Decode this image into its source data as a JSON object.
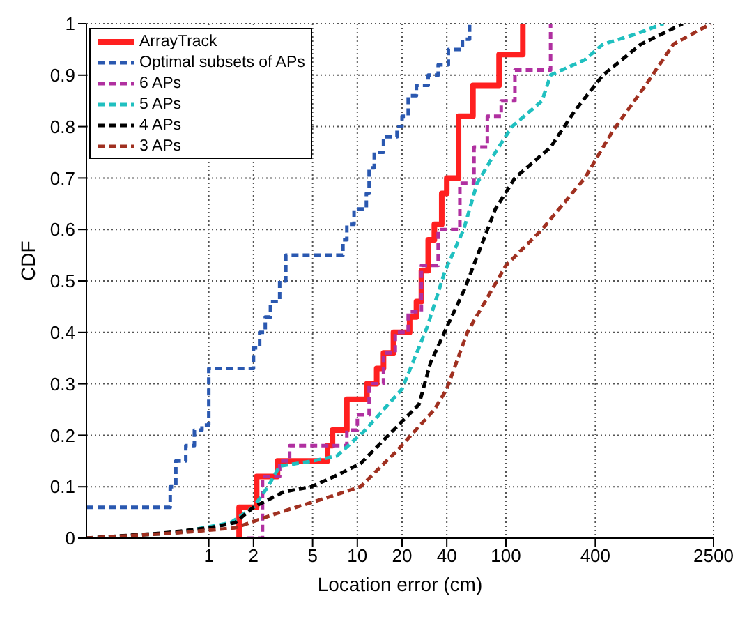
{
  "chart_data": {
    "type": "line",
    "xlabel": "Location error (cm)",
    "ylabel": "CDF",
    "log": "x",
    "xlim": [
      0.15,
      2500
    ],
    "xticks": [
      1,
      2,
      5,
      10,
      20,
      40,
      100,
      400,
      2500
    ],
    "ylim": [
      0,
      1
    ],
    "yticks": [
      0,
      0.1,
      0.2,
      0.3,
      0.4,
      0.5,
      0.6,
      0.7,
      0.8,
      0.9,
      1
    ],
    "grid": true,
    "legend": "top left",
    "marker": "none",
    "series": [
      {
        "name": "ArrayTrack",
        "type": "step",
        "color": "#ff2020",
        "line_style": "solid",
        "x": [
          1.6,
          1.6,
          2.1,
          2.9,
          6.3,
          6.8,
          8.5,
          11.6,
          13.5,
          15,
          17.5,
          22.5,
          25,
          27,
          30,
          33,
          37,
          40,
          48,
          60,
          90,
          130
        ],
        "values": [
          0,
          0.06,
          0.12,
          0.15,
          0.18,
          0.21,
          0.27,
          0.3,
          0.33,
          0.36,
          0.4,
          0.43,
          0.46,
          0.52,
          0.58,
          0.61,
          0.67,
          0.7,
          0.82,
          0.88,
          0.94,
          1
        ]
      },
      {
        "name": "Optimal subsets of APs",
        "type": "step",
        "color": "#2a58b0",
        "line_style": "dashed",
        "x": [
          0.15,
          0.5,
          0.55,
          0.6,
          0.7,
          0.8,
          0.9,
          1,
          1.9,
          2,
          2.2,
          2.4,
          2.6,
          3,
          3.3,
          7.8,
          8,
          8.5,
          9.5,
          11,
          11.5,
          12,
          13,
          15,
          18.5,
          20,
          22,
          25,
          30,
          35,
          41,
          45,
          51,
          57
        ],
        "values": [
          0.06,
          0.06,
          0.1,
          0.15,
          0.18,
          0.21,
          0.22,
          0.33,
          0.33,
          0.37,
          0.4,
          0.43,
          0.46,
          0.5,
          0.55,
          0.55,
          0.58,
          0.61,
          0.64,
          0.64,
          0.67,
          0.72,
          0.75,
          0.78,
          0.8,
          0.82,
          0.86,
          0.88,
          0.9,
          0.92,
          0.95,
          0.95,
          0.97,
          1
        ]
      },
      {
        "name": "6 APs",
        "type": "step",
        "color": "#b030a0",
        "line_style": "dashed",
        "x": [
          1.8,
          2.3,
          3,
          3.5,
          8.5,
          10,
          12,
          15,
          18,
          22,
          27,
          35,
          49,
          61,
          75,
          93,
          115,
          190,
          200
        ],
        "values": [
          0,
          0.12,
          0.15,
          0.18,
          0.21,
          0.24,
          0.3,
          0.36,
          0.4,
          0.44,
          0.53,
          0.6,
          0.69,
          0.76,
          0.82,
          0.85,
          0.91,
          0.91,
          1
        ]
      },
      {
        "name": "5 APs",
        "color": "#20c0c0",
        "line_style": "dashed",
        "x": [
          0.15,
          0.6,
          1.4,
          2,
          2.5,
          3,
          5,
          7.3,
          11.3,
          20,
          29.5,
          39,
          52,
          64,
          85,
          110,
          175,
          200,
          340,
          450,
          750,
          1150
        ],
        "values": [
          0,
          0.01,
          0.03,
          0.06,
          0.1,
          0.14,
          0.15,
          0.16,
          0.21,
          0.29,
          0.41,
          0.52,
          0.6,
          0.69,
          0.75,
          0.8,
          0.85,
          0.9,
          0.93,
          0.96,
          0.98,
          1
        ]
      },
      {
        "name": "4 APs",
        "color": "#000000",
        "line_style": "dashed",
        "x": [
          0.15,
          0.5,
          1,
          1.5,
          2,
          3.2,
          4.9,
          7,
          10.5,
          17.5,
          26,
          31,
          40,
          52,
          85,
          115,
          200,
          290,
          450,
          810,
          1550
        ],
        "values": [
          0,
          0.01,
          0.02,
          0.03,
          0.06,
          0.09,
          0.1,
          0.12,
          0.145,
          0.21,
          0.26,
          0.34,
          0.41,
          0.48,
          0.64,
          0.7,
          0.76,
          0.83,
          0.9,
          0.96,
          1
        ]
      },
      {
        "name": "3 APs",
        "color": "#a03020",
        "line_style": "dashed",
        "x": [
          0.15,
          0.6,
          1.5,
          3,
          5,
          7.3,
          10.5,
          18.5,
          33,
          40,
          55,
          100,
          175,
          340,
          520,
          870,
          1340,
          2400
        ],
        "values": [
          0,
          0.01,
          0.02,
          0.05,
          0.07,
          0.085,
          0.1,
          0.17,
          0.25,
          0.29,
          0.4,
          0.53,
          0.6,
          0.7,
          0.79,
          0.88,
          0.96,
          1
        ]
      }
    ]
  }
}
